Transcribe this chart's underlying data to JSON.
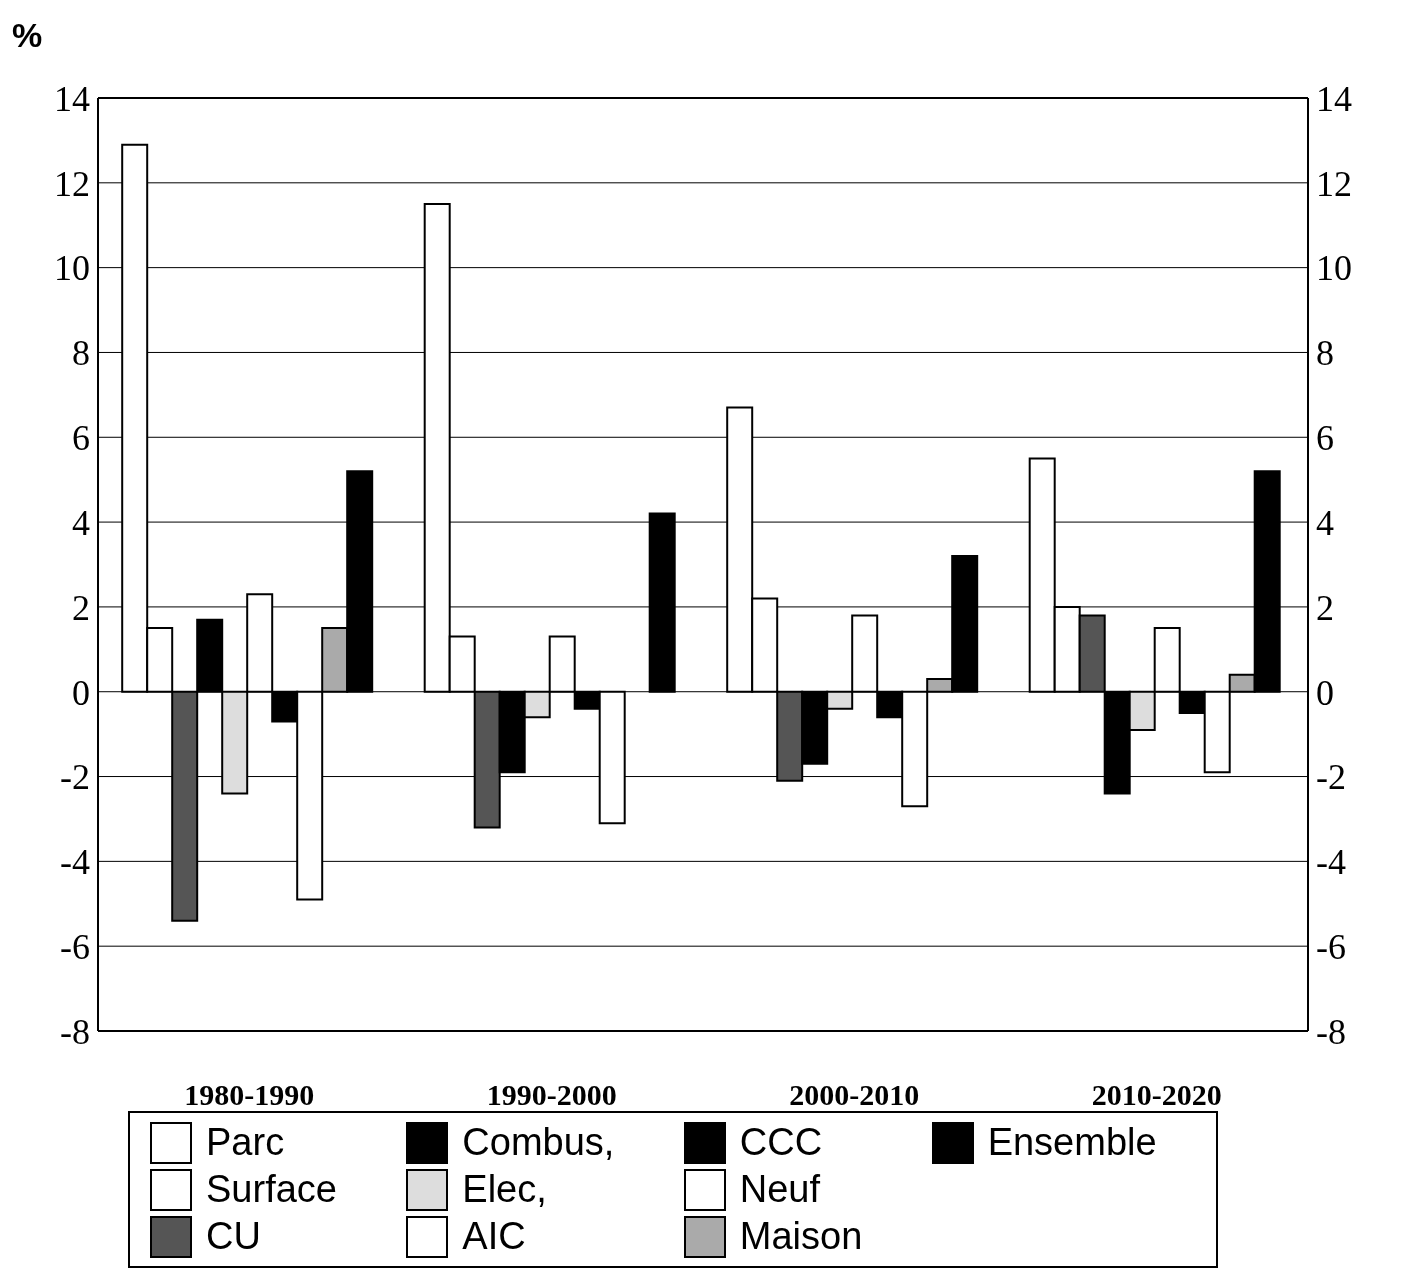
{
  "chart_data": {
    "type": "bar",
    "ylabel": "%",
    "categories": [
      "1980-1990",
      "1990-2000",
      "2000-2010",
      "2010-2020"
    ],
    "series": [
      {
        "name": "Parc",
        "color": "#ffffff",
        "values": [
          12.9,
          11.5,
          6.7,
          5.5
        ]
      },
      {
        "name": "Surface",
        "color": "#ffffff",
        "values": [
          1.5,
          1.3,
          2.2,
          2.0
        ]
      },
      {
        "name": "CU",
        "color": "#555555",
        "values": [
          -5.4,
          -3.2,
          -2.1,
          1.8
        ]
      },
      {
        "name": "Combus,",
        "color": "#000000",
        "values": [
          1.7,
          -1.9,
          -1.7,
          -2.4
        ]
      },
      {
        "name": "Elec,",
        "color": "#dddddd",
        "values": [
          -2.4,
          -0.6,
          -0.4,
          -0.9
        ]
      },
      {
        "name": "AIC",
        "color": "#ffffff",
        "values": [
          2.3,
          1.3,
          1.8,
          1.5
        ]
      },
      {
        "name": "CCC",
        "color": "#000000",
        "values": [
          -0.7,
          -0.4,
          -0.6,
          -0.5
        ]
      },
      {
        "name": "Neuf",
        "color": "#ffffff",
        "values": [
          -4.9,
          -3.1,
          -2.7,
          -1.9
        ]
      },
      {
        "name": "Maison",
        "color": "#aaaaaa",
        "values": [
          1.5,
          null,
          0.3,
          0.4
        ]
      },
      {
        "name": "Ensemble",
        "color": "#000000",
        "values": [
          5.2,
          4.2,
          3.2,
          5.2
        ]
      }
    ],
    "ylim": [
      -8,
      14
    ],
    "yticks": [
      -8,
      -6,
      -4,
      -2,
      0,
      2,
      4,
      6,
      8,
      10,
      12,
      14
    ],
    "y2lim": [
      -8,
      14
    ],
    "y2ticks": [
      -8,
      -6,
      -4,
      -2,
      0,
      2,
      4,
      6,
      8,
      10,
      12,
      14
    ],
    "grid": "y",
    "legend": "bottom"
  }
}
